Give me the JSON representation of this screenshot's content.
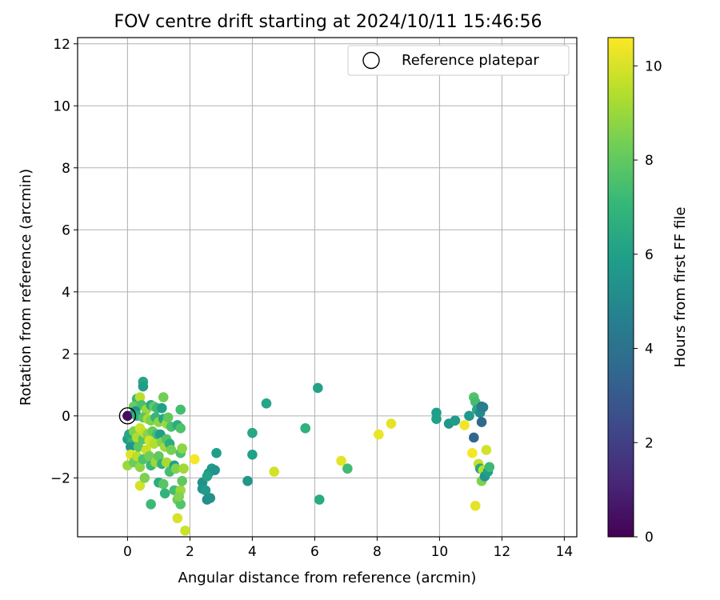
{
  "chart_data": {
    "type": "scatter",
    "title": "FOV centre drift starting at 2024/10/11 15:46:56",
    "xlabel": "Angular distance from reference (arcmin)",
    "ylabel": "Rotation from reference (arcmin)",
    "xlim": [
      -1.6,
      14.4
    ],
    "ylim": [
      -3.9,
      12.2
    ],
    "xticks": [
      0,
      2,
      4,
      6,
      8,
      10,
      12,
      14
    ],
    "yticks": [
      -2,
      0,
      2,
      4,
      6,
      8,
      10,
      12
    ],
    "grid": true,
    "legend": {
      "placement": "top-right",
      "entries": [
        {
          "label": "Reference platepar",
          "marker": "open-circle"
        }
      ]
    },
    "colorbar": {
      "label": "Hours from first FF file",
      "colormap": "viridis",
      "range": [
        0,
        10.6
      ],
      "ticks": [
        0,
        2,
        4,
        6,
        8,
        10
      ]
    },
    "reference_point": {
      "x": 0,
      "y": 0
    },
    "points": [
      {
        "x": 0.0,
        "y": 0.0,
        "c": 0.3
      },
      {
        "x": 0.5,
        "y": 1.1,
        "c": 6.3
      },
      {
        "x": 0.5,
        "y": 0.95,
        "c": 5.8
      },
      {
        "x": 0.3,
        "y": 0.55,
        "c": 7.0
      },
      {
        "x": 0.4,
        "y": 0.6,
        "c": 9.5
      },
      {
        "x": 0.2,
        "y": 0.3,
        "c": 8.2
      },
      {
        "x": 0.45,
        "y": 0.35,
        "c": 7.5
      },
      {
        "x": 0.6,
        "y": 0.2,
        "c": 9.0
      },
      {
        "x": 0.75,
        "y": 0.35,
        "c": 6.5
      },
      {
        "x": 0.85,
        "y": 0.3,
        "c": 8.0
      },
      {
        "x": 0.95,
        "y": 0.25,
        "c": 7.2
      },
      {
        "x": 1.1,
        "y": 0.25,
        "c": 6.0
      },
      {
        "x": 1.15,
        "y": 0.6,
        "c": 8.3
      },
      {
        "x": 0.25,
        "y": 0.15,
        "c": 5.5
      },
      {
        "x": 0.3,
        "y": 0.0,
        "c": 6.8
      },
      {
        "x": 0.5,
        "y": -0.05,
        "c": 7.8
      },
      {
        "x": 0.65,
        "y": -0.1,
        "c": 9.2
      },
      {
        "x": 0.75,
        "y": -0.15,
        "c": 8.5
      },
      {
        "x": 0.9,
        "y": -0.05,
        "c": 7.0
      },
      {
        "x": 1.0,
        "y": -0.2,
        "c": 8.8
      },
      {
        "x": 1.15,
        "y": -0.1,
        "c": 6.2
      },
      {
        "x": 1.25,
        "y": -0.25,
        "c": 9.0
      },
      {
        "x": 1.3,
        "y": -0.05,
        "c": 8.0
      },
      {
        "x": 1.4,
        "y": -0.35,
        "c": 7.5
      },
      {
        "x": 1.6,
        "y": -0.3,
        "c": 6.5
      },
      {
        "x": 1.7,
        "y": -0.4,
        "c": 7.6
      },
      {
        "x": 1.7,
        "y": 0.2,
        "c": 7.4
      },
      {
        "x": 0.0,
        "y": -0.75,
        "c": 5.8
      },
      {
        "x": 0.05,
        "y": -0.6,
        "c": 6.3
      },
      {
        "x": 0.15,
        "y": -0.85,
        "c": 7.0
      },
      {
        "x": 0.1,
        "y": -1.0,
        "c": 5.6
      },
      {
        "x": 0.2,
        "y": -0.5,
        "c": 8.5
      },
      {
        "x": 0.3,
        "y": -0.7,
        "c": 9.3
      },
      {
        "x": 0.4,
        "y": -0.4,
        "c": 9.8
      },
      {
        "x": 0.5,
        "y": -0.75,
        "c": 7.8
      },
      {
        "x": 0.55,
        "y": -0.55,
        "c": 9.6
      },
      {
        "x": 0.65,
        "y": -0.6,
        "c": 8.7
      },
      {
        "x": 0.7,
        "y": -0.8,
        "c": 9.9
      },
      {
        "x": 0.8,
        "y": -0.5,
        "c": 8.1
      },
      {
        "x": 0.85,
        "y": -0.9,
        "c": 9.4
      },
      {
        "x": 0.95,
        "y": -0.6,
        "c": 7.3
      },
      {
        "x": 1.05,
        "y": -0.6,
        "c": 5.9
      },
      {
        "x": 1.1,
        "y": -0.85,
        "c": 8.6
      },
      {
        "x": 1.2,
        "y": -1.0,
        "c": 9.1
      },
      {
        "x": 1.25,
        "y": -0.75,
        "c": 7.7
      },
      {
        "x": 1.35,
        "y": -0.9,
        "c": 6.6
      },
      {
        "x": 1.4,
        "y": -1.1,
        "c": 8.4
      },
      {
        "x": 0.0,
        "y": -1.6,
        "c": 9.0
      },
      {
        "x": 0.1,
        "y": -1.25,
        "c": 10.1
      },
      {
        "x": 0.2,
        "y": -1.5,
        "c": 8.2
      },
      {
        "x": 0.3,
        "y": -1.3,
        "c": 9.5
      },
      {
        "x": 0.35,
        "y": -1.0,
        "c": 7.9
      },
      {
        "x": 0.4,
        "y": -1.65,
        "c": 8.8
      },
      {
        "x": 0.5,
        "y": -1.4,
        "c": 7.6
      },
      {
        "x": 0.6,
        "y": -1.1,
        "c": 9.7
      },
      {
        "x": 0.7,
        "y": -1.3,
        "c": 8.3
      },
      {
        "x": 0.75,
        "y": -1.6,
        "c": 7.1
      },
      {
        "x": 0.9,
        "y": -1.5,
        "c": 9.0
      },
      {
        "x": 1.0,
        "y": -1.3,
        "c": 8.0
      },
      {
        "x": 1.1,
        "y": -1.55,
        "c": 6.8
      },
      {
        "x": 1.25,
        "y": -1.5,
        "c": 9.2
      },
      {
        "x": 1.35,
        "y": -1.8,
        "c": 7.4
      },
      {
        "x": 1.5,
        "y": -1.6,
        "c": 6.0
      },
      {
        "x": 1.55,
        "y": -1.7,
        "c": 8.6
      },
      {
        "x": 1.7,
        "y": -1.2,
        "c": 7.6
      },
      {
        "x": 1.75,
        "y": -1.05,
        "c": 8.8
      },
      {
        "x": 1.8,
        "y": -1.7,
        "c": 9.1
      },
      {
        "x": 0.4,
        "y": -2.25,
        "c": 9.9
      },
      {
        "x": 0.55,
        "y": -2.0,
        "c": 8.5
      },
      {
        "x": 0.75,
        "y": -2.85,
        "c": 7.2
      },
      {
        "x": 1.0,
        "y": -2.15,
        "c": 6.6
      },
      {
        "x": 1.15,
        "y": -2.2,
        "c": 7.8
      },
      {
        "x": 1.2,
        "y": -2.5,
        "c": 6.9
      },
      {
        "x": 1.5,
        "y": -2.4,
        "c": 7.4
      },
      {
        "x": 1.6,
        "y": -2.7,
        "c": 8.2
      },
      {
        "x": 1.7,
        "y": -2.4,
        "c": 9.0
      },
      {
        "x": 1.7,
        "y": -2.85,
        "c": 7.7
      },
      {
        "x": 1.65,
        "y": -2.6,
        "c": 8.6
      },
      {
        "x": 1.6,
        "y": -3.3,
        "c": 10.0
      },
      {
        "x": 1.85,
        "y": -3.7,
        "c": 9.8
      },
      {
        "x": 1.75,
        "y": -2.1,
        "c": 8.0
      },
      {
        "x": 2.15,
        "y": -1.4,
        "c": 10.5
      },
      {
        "x": 2.4,
        "y": -2.15,
        "c": 5.3
      },
      {
        "x": 2.4,
        "y": -2.35,
        "c": 5.5
      },
      {
        "x": 2.5,
        "y": -2.4,
        "c": 5.7
      },
      {
        "x": 2.55,
        "y": -2.7,
        "c": 5.2
      },
      {
        "x": 2.65,
        "y": -2.65,
        "c": 5.4
      },
      {
        "x": 2.6,
        "y": -1.85,
        "c": 5.6
      },
      {
        "x": 2.7,
        "y": -1.7,
        "c": 5.8
      },
      {
        "x": 2.8,
        "y": -1.75,
        "c": 5.5
      },
      {
        "x": 2.85,
        "y": -1.2,
        "c": 5.9
      },
      {
        "x": 2.55,
        "y": -1.95,
        "c": 6.1
      },
      {
        "x": 3.85,
        "y": -2.1,
        "c": 5.6
      },
      {
        "x": 4.0,
        "y": -1.25,
        "c": 6.0
      },
      {
        "x": 4.0,
        "y": -0.55,
        "c": 6.3
      },
      {
        "x": 4.45,
        "y": 0.4,
        "c": 6.2
      },
      {
        "x": 4.7,
        "y": -1.8,
        "c": 9.9
      },
      {
        "x": 5.7,
        "y": -0.4,
        "c": 6.8
      },
      {
        "x": 6.1,
        "y": 0.9,
        "c": 6.1
      },
      {
        "x": 6.15,
        "y": -2.7,
        "c": 6.5
      },
      {
        "x": 6.85,
        "y": -1.45,
        "c": 10.2
      },
      {
        "x": 7.05,
        "y": -1.7,
        "c": 7.3
      },
      {
        "x": 8.05,
        "y": -0.6,
        "c": 10.3
      },
      {
        "x": 8.45,
        "y": -0.25,
        "c": 10.2
      },
      {
        "x": 9.9,
        "y": 0.1,
        "c": 5.9
      },
      {
        "x": 9.9,
        "y": -0.1,
        "c": 6.0
      },
      {
        "x": 10.3,
        "y": -0.25,
        "c": 5.6
      },
      {
        "x": 10.5,
        "y": -0.15,
        "c": 5.8
      },
      {
        "x": 10.8,
        "y": -0.3,
        "c": 10.4
      },
      {
        "x": 10.95,
        "y": 0.0,
        "c": 5.7
      },
      {
        "x": 11.05,
        "y": -1.2,
        "c": 10.5
      },
      {
        "x": 11.1,
        "y": -0.7,
        "c": 3.5
      },
      {
        "x": 11.1,
        "y": 0.6,
        "c": 7.7
      },
      {
        "x": 11.15,
        "y": 0.45,
        "c": 7.4
      },
      {
        "x": 11.2,
        "y": 0.2,
        "c": 6.3
      },
      {
        "x": 11.3,
        "y": 0.1,
        "c": 5.1
      },
      {
        "x": 11.35,
        "y": 0.3,
        "c": 4.3
      },
      {
        "x": 11.4,
        "y": 0.28,
        "c": 4.5
      },
      {
        "x": 11.35,
        "y": -0.2,
        "c": 3.6
      },
      {
        "x": 11.15,
        "y": -2.9,
        "c": 10.2
      },
      {
        "x": 11.25,
        "y": -1.55,
        "c": 9.7
      },
      {
        "x": 11.3,
        "y": -1.7,
        "c": 6.3
      },
      {
        "x": 11.35,
        "y": -2.1,
        "c": 8.5
      },
      {
        "x": 11.4,
        "y": -1.75,
        "c": 9.5
      },
      {
        "x": 11.45,
        "y": -1.95,
        "c": 5.5
      },
      {
        "x": 11.5,
        "y": -1.1,
        "c": 9.9
      },
      {
        "x": 11.55,
        "y": -1.8,
        "c": 6.0
      },
      {
        "x": 11.6,
        "y": -1.65,
        "c": 7.2
      }
    ]
  }
}
